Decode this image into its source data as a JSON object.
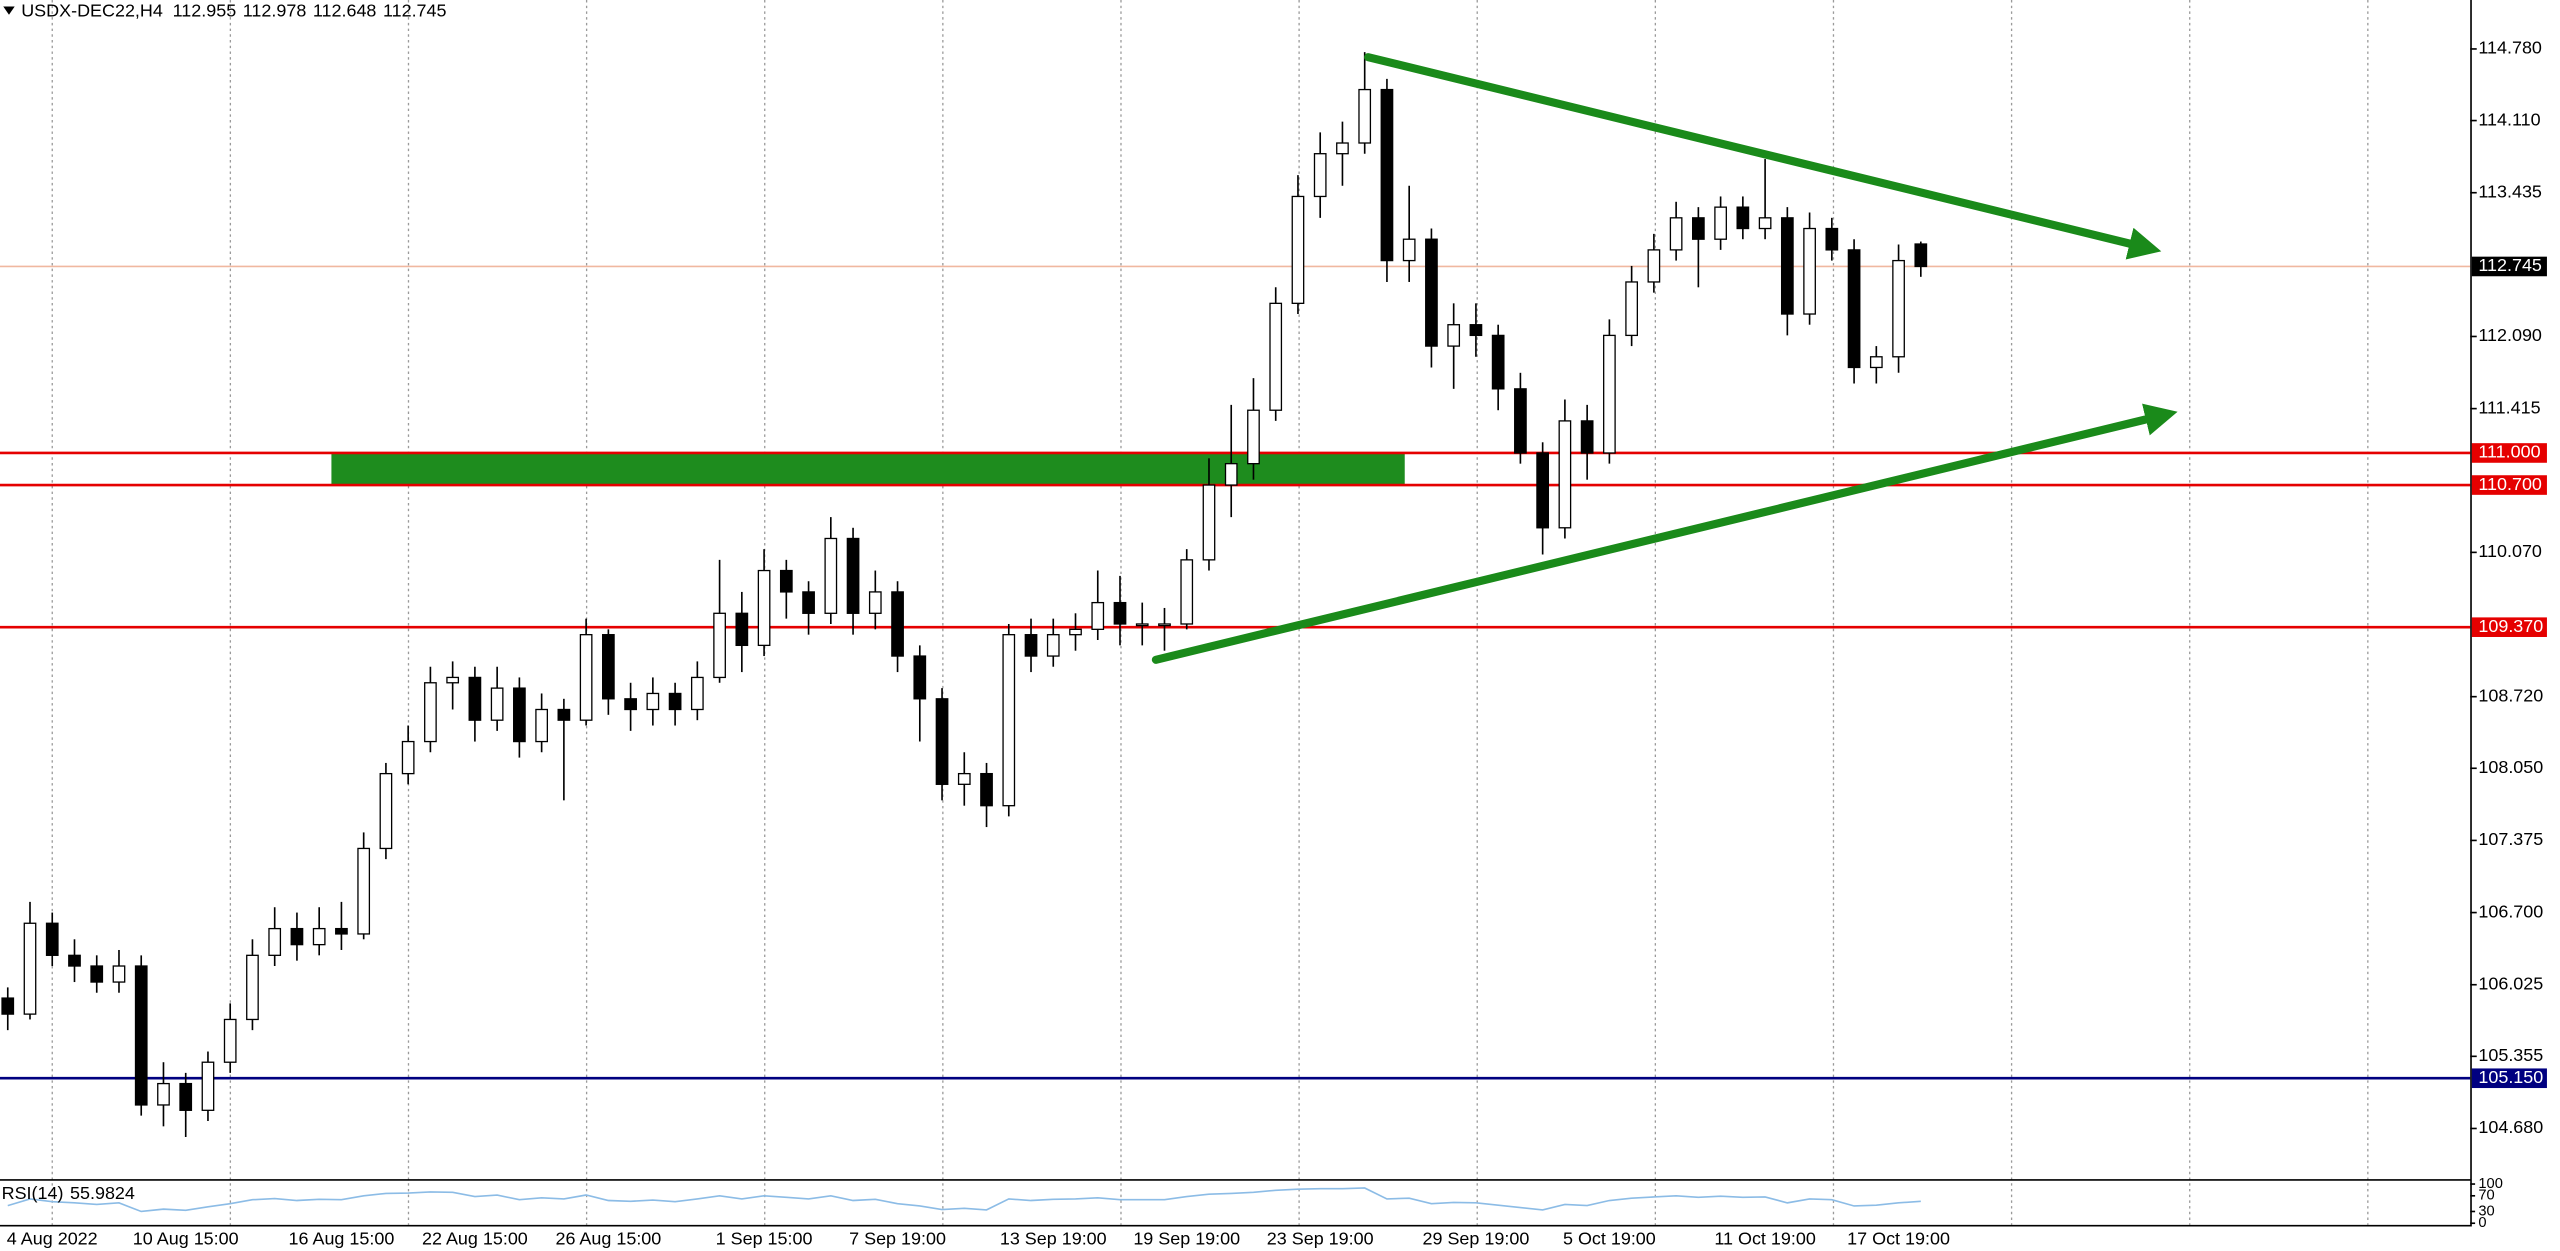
{
  "chart_data": [
    {
      "type": "candlestick",
      "title": "USDX-DEC22,H4",
      "categories": [
        null,
        null,
        "4 Aug 2022",
        null,
        null,
        null,
        null,
        null,
        "10 Aug 15:00",
        null,
        null,
        null,
        null,
        null,
        null,
        "16 Aug 15:00",
        null,
        null,
        null,
        null,
        null,
        "22 Aug 15:00",
        null,
        null,
        null,
        null,
        null,
        "26 Aug 15:00",
        null,
        null,
        null,
        null,
        null,
        null,
        "1 Sep 15:00",
        null,
        null,
        null,
        null,
        null,
        "7 Sep 19:00",
        null,
        null,
        null,
        null,
        null,
        null,
        "13 Sep 19:00",
        null,
        null,
        null,
        null,
        null,
        "19 Sep 19:00",
        null,
        null,
        null,
        null,
        null,
        "23 Sep 19:00",
        null,
        null,
        null,
        null,
        null,
        null,
        "29 Sep 19:00",
        null,
        null,
        null,
        null,
        null,
        "5 Oct 19:00",
        null,
        null,
        null,
        null,
        null,
        null,
        "11 Oct 19:00",
        null,
        null,
        null,
        null,
        null,
        "17 Oct 19:00",
        null
      ],
      "open": [
        105.9,
        105.75,
        106.6,
        106.3,
        106.2,
        106.05,
        106.2,
        104.9,
        105.1,
        104.85,
        105.3,
        105.7,
        106.3,
        106.55,
        106.4,
        106.55,
        106.5,
        107.3,
        108.0,
        108.3,
        108.85,
        108.9,
        108.5,
        108.8,
        108.3,
        108.6,
        108.5,
        109.3,
        108.7,
        108.6,
        108.75,
        108.6,
        108.9,
        109.5,
        109.2,
        109.9,
        109.7,
        109.5,
        110.2,
        109.5,
        109.7,
        109.1,
        108.7,
        107.9,
        108.0,
        107.7,
        109.3,
        109.1,
        109.3,
        109.35,
        109.6,
        109.4,
        109.4,
        109.4,
        110.0,
        110.7,
        110.9,
        111.4,
        112.4,
        113.4,
        113.8,
        113.9,
        114.4,
        112.8,
        113.0,
        112.0,
        112.2,
        112.1,
        111.6,
        111.0,
        110.3,
        111.3,
        111.0,
        112.1,
        112.6,
        112.9,
        113.2,
        113.0,
        113.3,
        113.1,
        113.2,
        112.3,
        113.1,
        112.9,
        111.8,
        111.9,
        112.955
      ],
      "high": [
        106.0,
        106.8,
        106.7,
        106.45,
        106.3,
        106.35,
        106.3,
        105.3,
        105.2,
        105.4,
        105.85,
        106.45,
        106.75,
        106.7,
        106.75,
        106.8,
        107.45,
        108.1,
        108.45,
        109.0,
        109.05,
        109.0,
        109.0,
        108.9,
        108.75,
        108.7,
        109.45,
        109.35,
        108.85,
        108.9,
        108.85,
        109.05,
        110.0,
        109.7,
        110.1,
        110.0,
        109.8,
        110.4,
        110.3,
        109.9,
        109.8,
        109.2,
        108.8,
        108.2,
        108.1,
        109.4,
        109.45,
        109.45,
        109.5,
        109.9,
        109.85,
        109.6,
        109.55,
        110.1,
        110.95,
        111.45,
        111.7,
        112.55,
        113.6,
        114.0,
        114.1,
        114.75,
        114.5,
        113.5,
        113.1,
        112.4,
        112.4,
        112.2,
        111.75,
        111.1,
        111.5,
        111.45,
        112.25,
        112.75,
        113.05,
        113.35,
        113.3,
        113.4,
        113.4,
        113.75,
        113.3,
        113.25,
        113.2,
        113.0,
        112.0,
        112.95,
        112.978
      ],
      "low": [
        105.6,
        105.7,
        106.2,
        106.05,
        105.95,
        105.95,
        104.8,
        104.7,
        104.6,
        104.75,
        105.2,
        105.6,
        106.2,
        106.25,
        106.3,
        106.35,
        106.45,
        107.2,
        107.9,
        108.2,
        108.6,
        108.3,
        108.4,
        108.15,
        108.2,
        107.75,
        108.45,
        108.55,
        108.4,
        108.45,
        108.45,
        108.5,
        108.85,
        108.95,
        109.1,
        109.45,
        109.3,
        109.4,
        109.3,
        109.35,
        108.95,
        108.3,
        107.75,
        107.7,
        107.5,
        107.6,
        108.95,
        109.0,
        109.15,
        109.25,
        109.2,
        109.2,
        109.15,
        109.35,
        109.9,
        110.4,
        110.75,
        111.3,
        112.3,
        113.2,
        113.5,
        113.8,
        112.6,
        112.6,
        111.8,
        111.6,
        111.9,
        111.4,
        110.9,
        110.05,
        110.2,
        110.75,
        110.9,
        112.0,
        112.5,
        112.8,
        112.55,
        112.9,
        113.0,
        113.0,
        112.1,
        112.2,
        112.8,
        111.65,
        111.65,
        111.75,
        112.648
      ],
      "close": [
        105.75,
        106.6,
        106.3,
        106.2,
        106.05,
        106.2,
        104.9,
        105.1,
        104.85,
        105.3,
        105.7,
        106.3,
        106.55,
        106.4,
        106.55,
        106.5,
        107.3,
        108.0,
        108.3,
        108.85,
        108.9,
        108.5,
        108.8,
        108.3,
        108.6,
        108.5,
        109.3,
        108.7,
        108.6,
        108.75,
        108.6,
        108.9,
        109.5,
        109.2,
        109.9,
        109.7,
        109.5,
        110.2,
        109.5,
        109.7,
        109.1,
        108.7,
        107.9,
        108.0,
        107.7,
        109.3,
        109.1,
        109.3,
        109.35,
        109.6,
        109.4,
        109.4,
        109.4,
        110.0,
        110.7,
        110.9,
        111.4,
        112.4,
        113.4,
        113.8,
        113.9,
        114.4,
        112.8,
        113.0,
        112.0,
        112.2,
        112.1,
        111.6,
        111.0,
        110.3,
        111.3,
        111.0,
        112.1,
        112.6,
        112.9,
        113.2,
        113.0,
        113.3,
        113.1,
        113.2,
        112.3,
        113.1,
        112.9,
        111.8,
        111.9,
        112.8,
        112.745
      ],
      "bull_color": "#ffffff",
      "bear_color": "#000000",
      "candle_outline": "#000000",
      "ylim": [
        104.206,
        115.238
      ],
      "yticks": [
        {
          "value": 114.78,
          "label": "114.780"
        },
        {
          "value": 114.11,
          "label": "114.110"
        },
        113.435,
        {
          "value": 112.09,
          "label": "112.090"
        },
        111.415,
        {
          "value": 110.07,
          "label": "110.070"
        },
        {
          "value": 108.72,
          "label": "108.720"
        },
        {
          "value": 108.05,
          "label": "108.050"
        },
        107.375,
        {
          "value": 106.7,
          "label": "106.700"
        },
        106.025,
        105.355,
        {
          "value": 104.68,
          "label": "104.680"
        }
      ],
      "grid": true,
      "hlines": [
        {
          "value": 111.0,
          "label": "111.000",
          "color": "#e50000"
        },
        {
          "value": 110.7,
          "label": "110.700",
          "color": "#e50000"
        },
        {
          "value": 109.37,
          "label": "109.370",
          "color": "#e50000"
        },
        {
          "value": 105.15,
          "label": "105.150",
          "color": "#000080"
        }
      ],
      "zones": [
        {
          "from": 110.7,
          "to": 111.0,
          "color": "#1e8c1e"
        }
      ],
      "current_price_color": "#f0b8a0",
      "current_price_label_color": "#000000"
    },
    {
      "type": "line",
      "title": "RSI(14)",
      "values": [
        45,
        62,
        55,
        52,
        48,
        52,
        30,
        36,
        33,
        42,
        50,
        60,
        63,
        58,
        61,
        60,
        70,
        76,
        77,
        80,
        79,
        68,
        72,
        60,
        65,
        62,
        72,
        58,
        56,
        59,
        55,
        62,
        70,
        62,
        70,
        66,
        62,
        70,
        58,
        61,
        50,
        44,
        35,
        38,
        34,
        62,
        58,
        61,
        62,
        65,
        60,
        60,
        60,
        68,
        74,
        76,
        79,
        84,
        87,
        88,
        88,
        90,
        62,
        64,
        50,
        53,
        52,
        46,
        40,
        34,
        48,
        45,
        58,
        64,
        67,
        70,
        66,
        69,
        66,
        67,
        52,
        62,
        60,
        44,
        46,
        52,
        55.9824
      ],
      "color": "#8cbce6",
      "ylim": [
        0,
        100
      ],
      "yticks": [
        100,
        70,
        30,
        0
      ]
    }
  ]
}
